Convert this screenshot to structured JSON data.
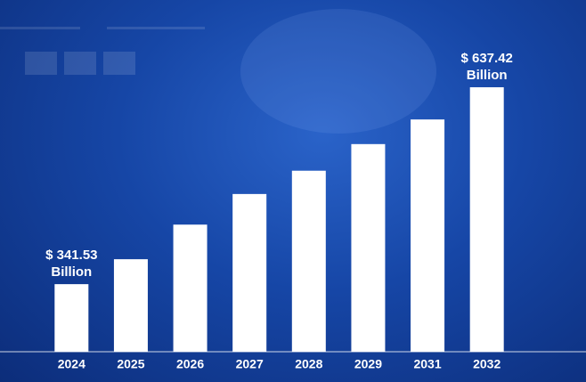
{
  "chart_data": {
    "type": "bar",
    "categories": [
      "2024",
      "2025",
      "2026",
      "2027",
      "2028",
      "2029",
      "2031",
      "2032"
    ],
    "values": [
      341.53,
      379,
      431,
      477,
      512,
      552,
      589,
      637.42
    ],
    "value_labels": [
      "$ 341.53 Billion",
      null,
      null,
      null,
      null,
      null,
      null,
      "$ 637.42 Billion"
    ],
    "color": "#ffffff",
    "ylim": [
      240,
      715
    ]
  }
}
